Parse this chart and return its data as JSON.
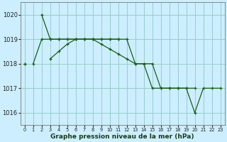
{
  "background_color": "#cceeff",
  "plot_bg_color": "#cceeff",
  "grid_color": "#99cccc",
  "line_color": "#1a5c1a",
  "xlabel": "Graphe pression niveau de la mer (hPa)",
  "ylim": [
    1015.5,
    1020.5
  ],
  "xlim": [
    -0.5,
    23.5
  ],
  "yticks": [
    1016,
    1017,
    1018,
    1019,
    1020
  ],
  "xticks": [
    0,
    1,
    2,
    3,
    4,
    5,
    6,
    7,
    8,
    9,
    10,
    11,
    12,
    13,
    14,
    15,
    16,
    17,
    18,
    19,
    20,
    21,
    22,
    23
  ],
  "series": [
    [
      1018.0,
      null,
      1020.0,
      1019.0,
      1019.0,
      1019.0,
      1019.0,
      1019.0,
      1019.0,
      1019.0,
      1019.0,
      1019.0,
      1019.0,
      1018.0,
      1018.0,
      1018.0,
      1017.0,
      1017.0,
      1017.0,
      1017.0,
      1017.0,
      null,
      null,
      null
    ],
    [
      null,
      1018.0,
      1019.0,
      1019.0,
      1019.0,
      1019.0,
      1019.0,
      1019.0,
      1019.0,
      1019.0,
      1019.0,
      1019.0,
      null,
      null,
      null,
      null,
      null,
      null,
      null,
      null,
      null,
      null,
      null,
      null
    ],
    [
      1018.0,
      null,
      null,
      1018.2,
      1018.5,
      1018.8,
      1019.0,
      1019.0,
      1019.0,
      1018.8,
      1018.6,
      1018.4,
      1018.2,
      1018.0,
      1018.0,
      1017.0,
      1017.0,
      1017.0,
      1017.0,
      1017.0,
      1016.0,
      1017.0,
      1017.0,
      1017.0
    ]
  ]
}
